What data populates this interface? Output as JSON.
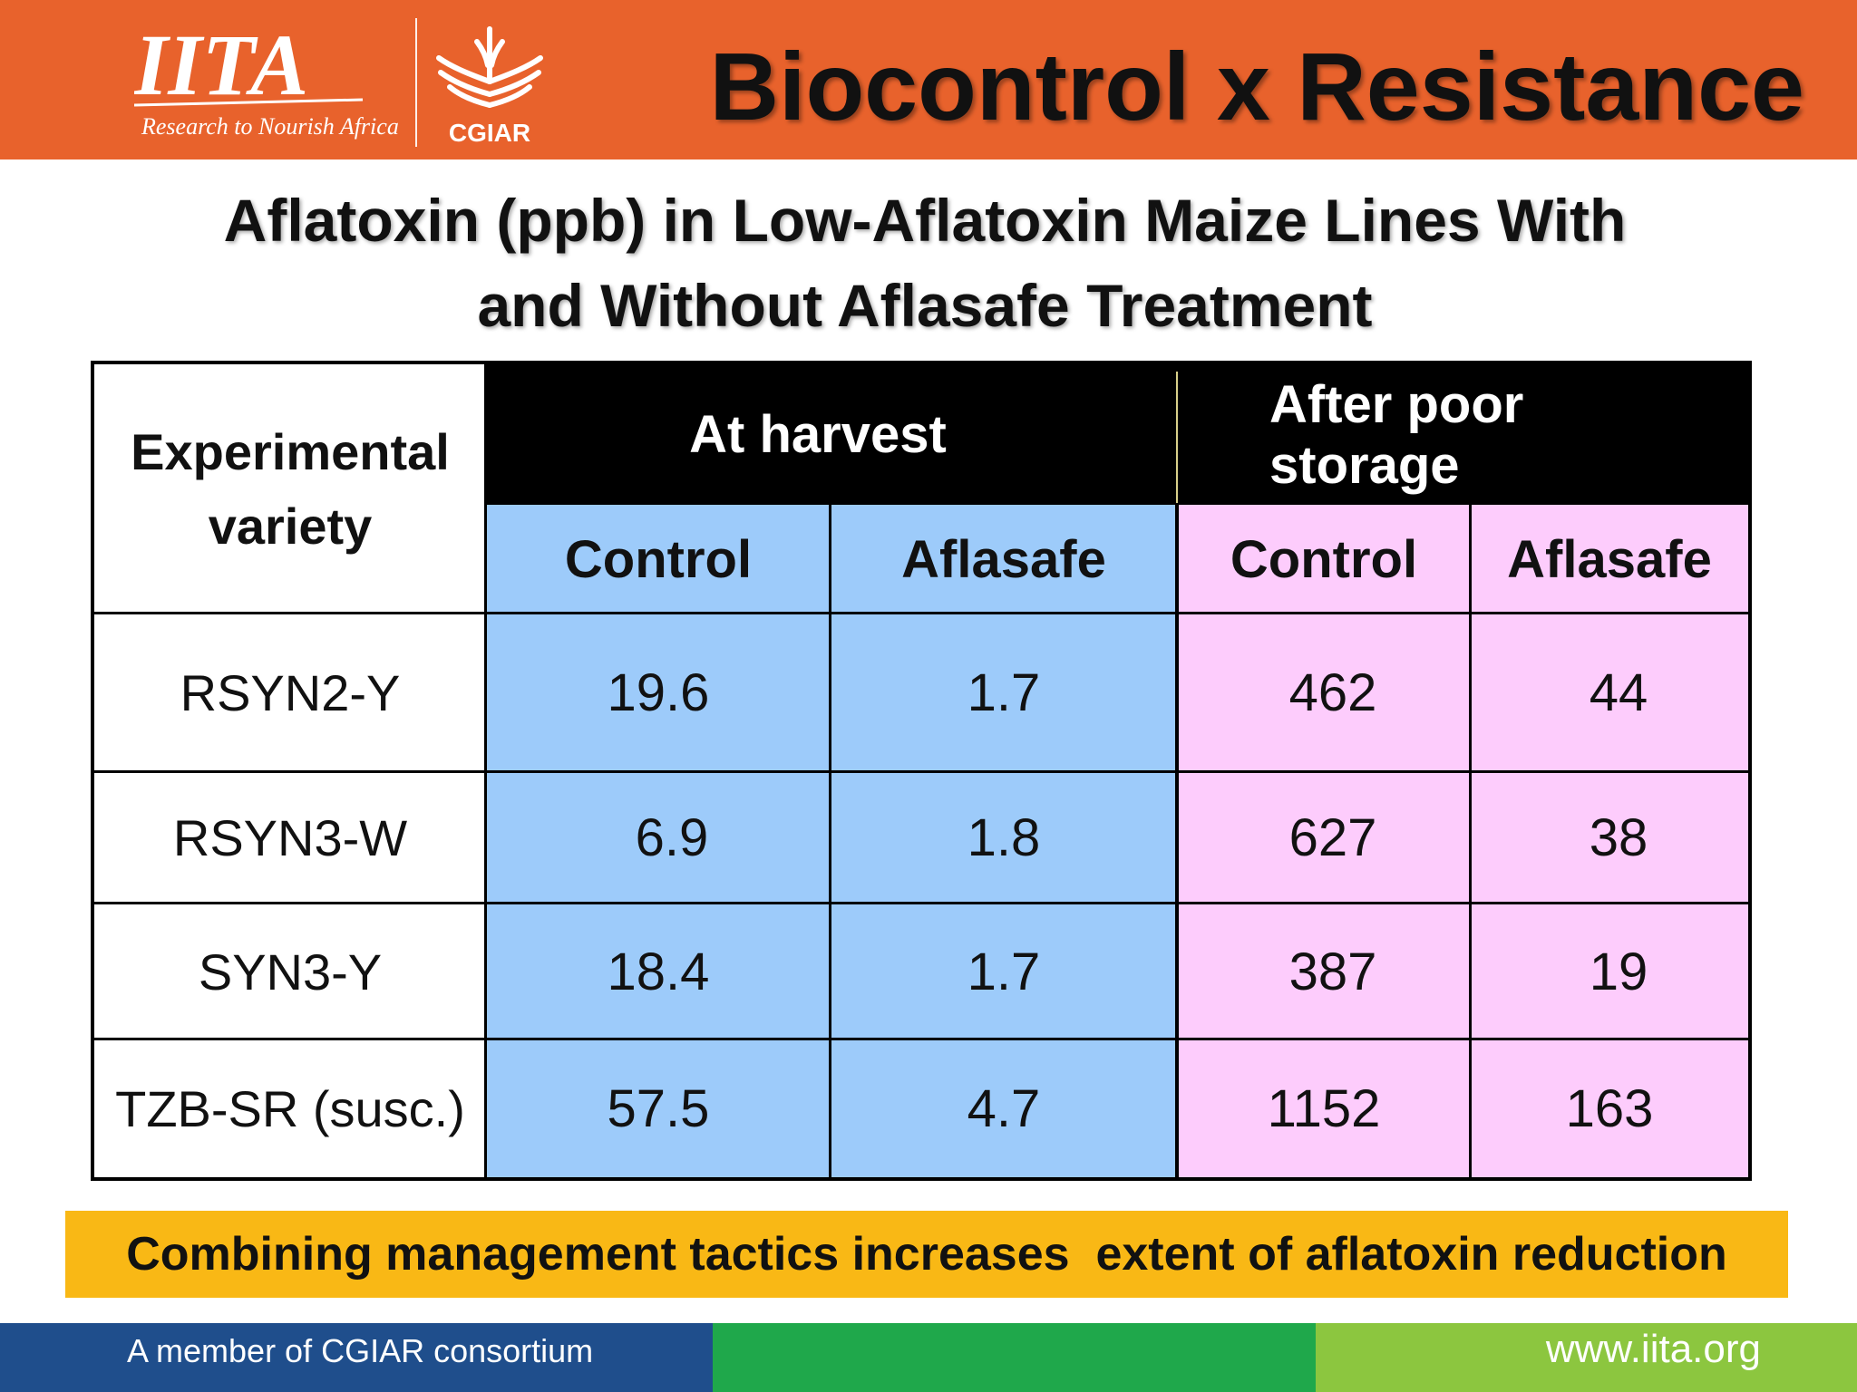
{
  "header": {
    "logo_iita_text": "IITA",
    "logo_iita_tagline": "Research to Nourish Africa",
    "logo_cgiar_text": "CGIAR",
    "title": "Biocontrol x Resistance"
  },
  "subtitle": {
    "line1": "Aflatoxin (ppb) in Low-Aflatoxin Maize Lines With",
    "line2": "and Without Aflasafe Treatment"
  },
  "table": {
    "row_header_line1": "Experimental",
    "row_header_line2": "variety",
    "group1": "At harvest",
    "group2": "After poor storage",
    "sub_headers": [
      "Control",
      "Aflasafe",
      "Control",
      "Aflasafe"
    ],
    "rows": [
      {
        "variety": "RSYN2-Y",
        "harvest_control": "19.6",
        "harvest_aflasafe": "1.7",
        "storage_control": "462",
        "storage_aflasafe": "44"
      },
      {
        "variety": "RSYN3-W",
        "harvest_control": "6.9",
        "harvest_aflasafe": "1.8",
        "storage_control": "627",
        "storage_aflasafe": "38"
      },
      {
        "variety": "SYN3-Y",
        "harvest_control": "18.4",
        "harvest_aflasafe": "1.7",
        "storage_control": "387",
        "storage_aflasafe": "19"
      },
      {
        "variety": "TZB-SR (susc.)",
        "harvest_control": "57.5",
        "harvest_aflasafe": "4.7",
        "storage_control": "1152",
        "storage_aflasafe": "163"
      }
    ]
  },
  "callout": "Combining management tactics increases  extent of aflatoxin reduction",
  "footer": {
    "left": "A member of CGIAR consortium",
    "right": "www.iita.org"
  },
  "colors": {
    "header_orange": "#e8622c",
    "harvest_blue": "#9dcbfa",
    "storage_pink": "#fdccfc",
    "callout_yellow": "#f9b815",
    "footer_blue": "#1f4e8c",
    "footer_green": "#1fa84b",
    "footer_lime": "#8cc63f"
  }
}
